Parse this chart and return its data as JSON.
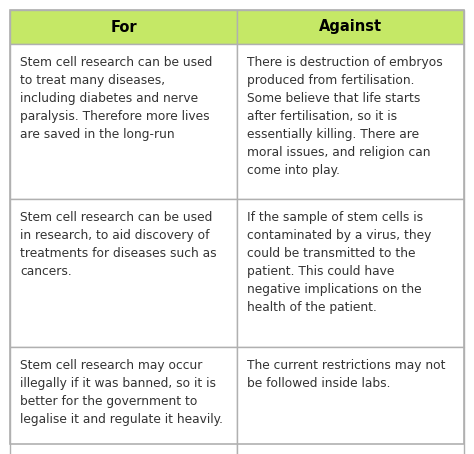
{
  "header_bg": "#c5e866",
  "header_text_color": "#000000",
  "cell_bg": "#ffffff",
  "fig_bg": "#ffffff",
  "border_color": "#b0b0b0",
  "text_color": "#333333",
  "col_headers": [
    "For",
    "Against"
  ],
  "rows": [
    [
      "Stem cell research can be used\nto treat many diseases,\nincluding diabetes and nerve\nparalysis. Therefore more lives\nare saved in the long-run",
      "There is destruction of embryos\nproduced from fertilisation.\nSome believe that life starts\nafter fertilisation, so it is\nessentially killing. There are\nmoral issues, and religion can\ncome into play."
    ],
    [
      "Stem cell research can be used\nin research, to aid discovery of\ntreatments for diseases such as\ncancers.",
      "If the sample of stem cells is\ncontaminated by a virus, they\ncould be transmitted to the\npatient. This could have\nnegative implications on the\nhealth of the patient."
    ],
    [
      "Stem cell research may occur\nillegally if it was banned, so it is\nbetter for the government to\nlegalise it and regulate it heavily.",
      "The current restrictions may not\nbe followed inside labs."
    ]
  ],
  "header_fontsize": 10.5,
  "cell_fontsize": 8.8,
  "fig_width": 4.74,
  "fig_height": 4.54,
  "dpi": 100
}
